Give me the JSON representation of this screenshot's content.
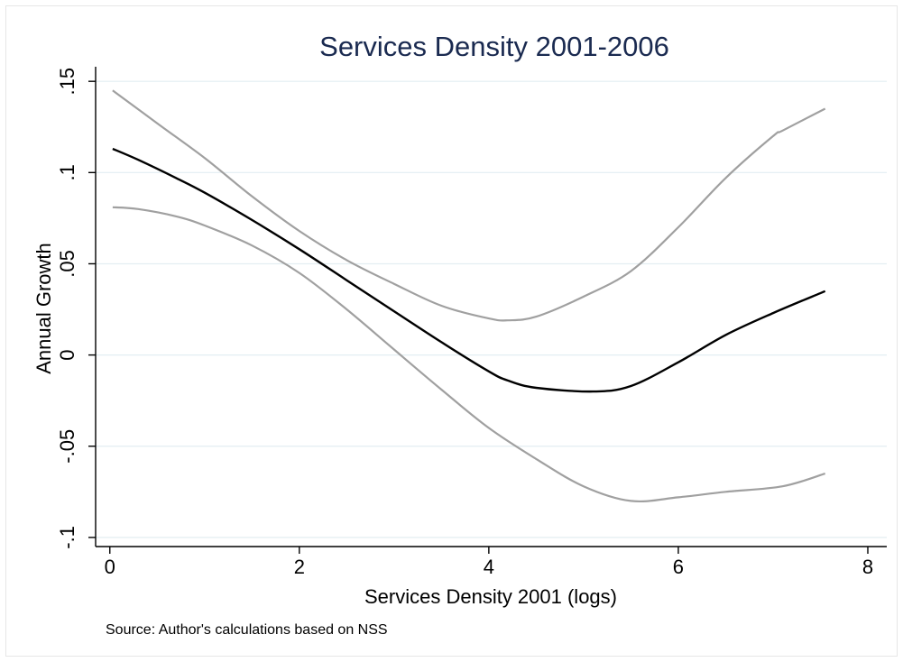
{
  "chart_data": {
    "type": "line",
    "title": "Services Density 2001-2006",
    "xlabel": "Services Density 2001 (logs)",
    "ylabel": "Annual Growth",
    "note": "Source: Author's calculations based on NSS",
    "xlim": [
      -0.15,
      8.2
    ],
    "ylim": [
      -0.105,
      0.158
    ],
    "xticks": [
      0,
      2,
      4,
      6,
      8
    ],
    "xtick_labels": [
      "0",
      "2",
      "4",
      "6",
      "8"
    ],
    "yticks": [
      -0.1,
      -0.05,
      0,
      0.05,
      0.1,
      0.15
    ],
    "ytick_labels": [
      "-.1",
      "-.05",
      "0",
      ".05",
      ".1",
      ".15"
    ],
    "grid": true,
    "legend": "none",
    "series": [
      {
        "role": "upper-ci",
        "color": "#a0a0a0",
        "x": [
          0.03,
          0.5,
          1.0,
          1.5,
          2.0,
          2.5,
          3.0,
          3.5,
          4.0,
          4.2,
          4.5,
          5.0,
          5.5,
          6.0,
          6.5,
          7.0,
          7.1,
          7.55
        ],
        "y": [
          0.145,
          0.127,
          0.108,
          0.087,
          0.068,
          0.052,
          0.039,
          0.027,
          0.02,
          0.019,
          0.021,
          0.032,
          0.046,
          0.07,
          0.097,
          0.12,
          0.123,
          0.135
        ]
      },
      {
        "role": "estimate",
        "color": "#000000",
        "x": [
          0.03,
          0.3,
          0.7,
          1.0,
          1.5,
          2.0,
          2.5,
          3.0,
          3.5,
          4.0,
          4.2,
          4.5,
          5.1,
          5.5,
          6.0,
          6.5,
          7.0,
          7.55
        ],
        "y": [
          0.113,
          0.107,
          0.097,
          0.089,
          0.074,
          0.058,
          0.041,
          0.024,
          0.007,
          -0.009,
          -0.014,
          -0.018,
          -0.02,
          -0.017,
          -0.004,
          0.011,
          0.023,
          0.035
        ]
      },
      {
        "role": "lower-ci",
        "color": "#a0a0a0",
        "x": [
          0.03,
          0.3,
          0.7,
          1.0,
          1.5,
          2.0,
          2.5,
          3.0,
          3.5,
          4.0,
          4.5,
          5.0,
          5.5,
          6.0,
          6.5,
          7.1,
          7.55
        ],
        "y": [
          0.081,
          0.08,
          0.076,
          0.071,
          0.06,
          0.045,
          0.025,
          0.003,
          -0.019,
          -0.04,
          -0.057,
          -0.072,
          -0.08,
          -0.078,
          -0.075,
          -0.072,
          -0.065
        ]
      }
    ]
  }
}
